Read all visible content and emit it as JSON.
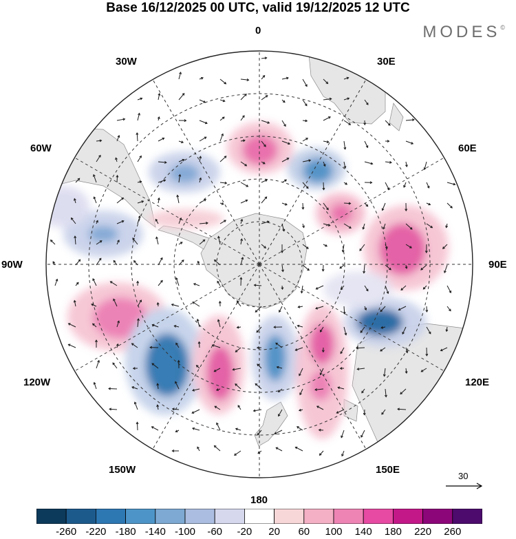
{
  "title": "Base 16/12/2025 00 UTC, valid 19/12/2025 12 UTC",
  "brand": "MODES",
  "brand_mark": "©",
  "map": {
    "projection": "south-polar-stereographic",
    "meridian_labels": {
      "m0": "0",
      "m30e": "30E",
      "m60e": "60E",
      "m90e": "90E",
      "m120e": "120E",
      "m150e": "150E",
      "m180": "180",
      "m150w": "150W",
      "m120w": "120W",
      "m90w": "90W",
      "m60w": "60W",
      "m30w": "30W"
    },
    "reference_vector": "30"
  },
  "colorbar": {
    "ticks": [
      "-260",
      "-220",
      "-180",
      "-140",
      "-100",
      "-60",
      "-20",
      "20",
      "60",
      "100",
      "140",
      "180",
      "220",
      "260"
    ],
    "colors": [
      "#0c3a5a",
      "#1c5a8c",
      "#2d77b3",
      "#4d95c8",
      "#7da9d3",
      "#abbde0",
      "#d6d8ee",
      "#ffffff",
      "#f8d7d8",
      "#f4b0c5",
      "#ee84b4",
      "#e64aa2",
      "#c21888",
      "#8c067a",
      "#4d0b6d"
    ]
  },
  "colors": {
    "land": "#e6e6e6",
    "negative": "#3d86be",
    "positive": "#e85aa8"
  }
}
